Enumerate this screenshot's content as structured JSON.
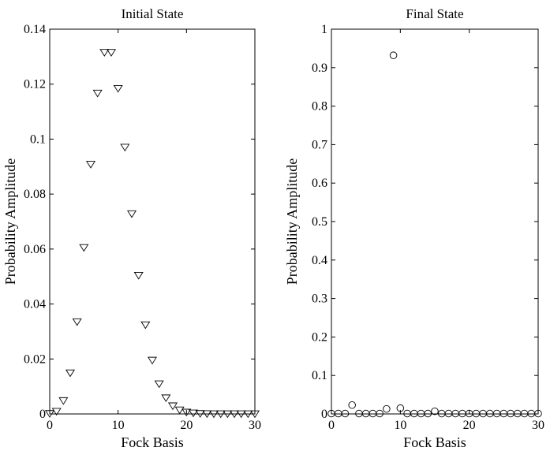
{
  "chart_data": [
    {
      "type": "scatter",
      "title": "Initial State",
      "xlabel": "Fock Basis",
      "ylabel": "Probability Amplitude",
      "xlim": [
        0,
        30
      ],
      "ylim": [
        0,
        0.14
      ],
      "xticks": [
        0,
        10,
        20,
        30
      ],
      "yticks": [
        0,
        0.02,
        0.04,
        0.06,
        0.08,
        0.1,
        0.12,
        0.14
      ],
      "marker": "triangle-down",
      "grid": false,
      "series": [
        {
          "x": [
            0,
            1,
            2,
            3,
            4,
            5,
            6,
            7,
            8,
            9,
            10,
            11,
            12,
            13,
            14,
            15,
            16,
            17,
            18,
            19,
            20,
            21,
            22,
            23,
            24,
            25,
            26,
            27,
            28,
            29,
            30
          ],
          "values": [
            0.0001,
            0.0009,
            0.0048,
            0.0149,
            0.0335,
            0.0605,
            0.0908,
            0.1167,
            0.1315,
            0.1315,
            0.1184,
            0.097,
            0.0728,
            0.0504,
            0.0324,
            0.0195,
            0.0109,
            0.0058,
            0.0029,
            0.0014,
            0.0006,
            0.0003,
            0.0001,
            5e-05,
            2e-05,
            1e-05,
            0,
            0,
            0,
            0,
            0
          ]
        }
      ]
    },
    {
      "type": "scatter",
      "title": "Final State",
      "xlabel": "Fock Basis",
      "ylabel": "Probability Amplitude",
      "xlim": [
        0,
        30
      ],
      "ylim": [
        0,
        1
      ],
      "xticks": [
        0,
        10,
        20,
        30
      ],
      "yticks": [
        0,
        0.1,
        0.2,
        0.3,
        0.4,
        0.5,
        0.6,
        0.7,
        0.8,
        0.9,
        1
      ],
      "marker": "circle",
      "grid": false,
      "series": [
        {
          "x": [
            0,
            1,
            2,
            3,
            4,
            5,
            6,
            7,
            8,
            9,
            10,
            11,
            12,
            13,
            14,
            15,
            16,
            17,
            18,
            19,
            20,
            21,
            22,
            23,
            24,
            25,
            26,
            27,
            28,
            29,
            30
          ],
          "values": [
            0.001,
            0.001,
            0.001,
            0.023,
            0.001,
            0.001,
            0.001,
            0.001,
            0.013,
            0.932,
            0.015,
            0.001,
            0.001,
            0.001,
            0.001,
            0.007,
            0.001,
            0.001,
            0.001,
            0.001,
            0.001,
            0.001,
            0.001,
            0.001,
            0.001,
            0.001,
            0.001,
            0.001,
            0.001,
            0.001,
            0.001
          ]
        }
      ]
    }
  ]
}
